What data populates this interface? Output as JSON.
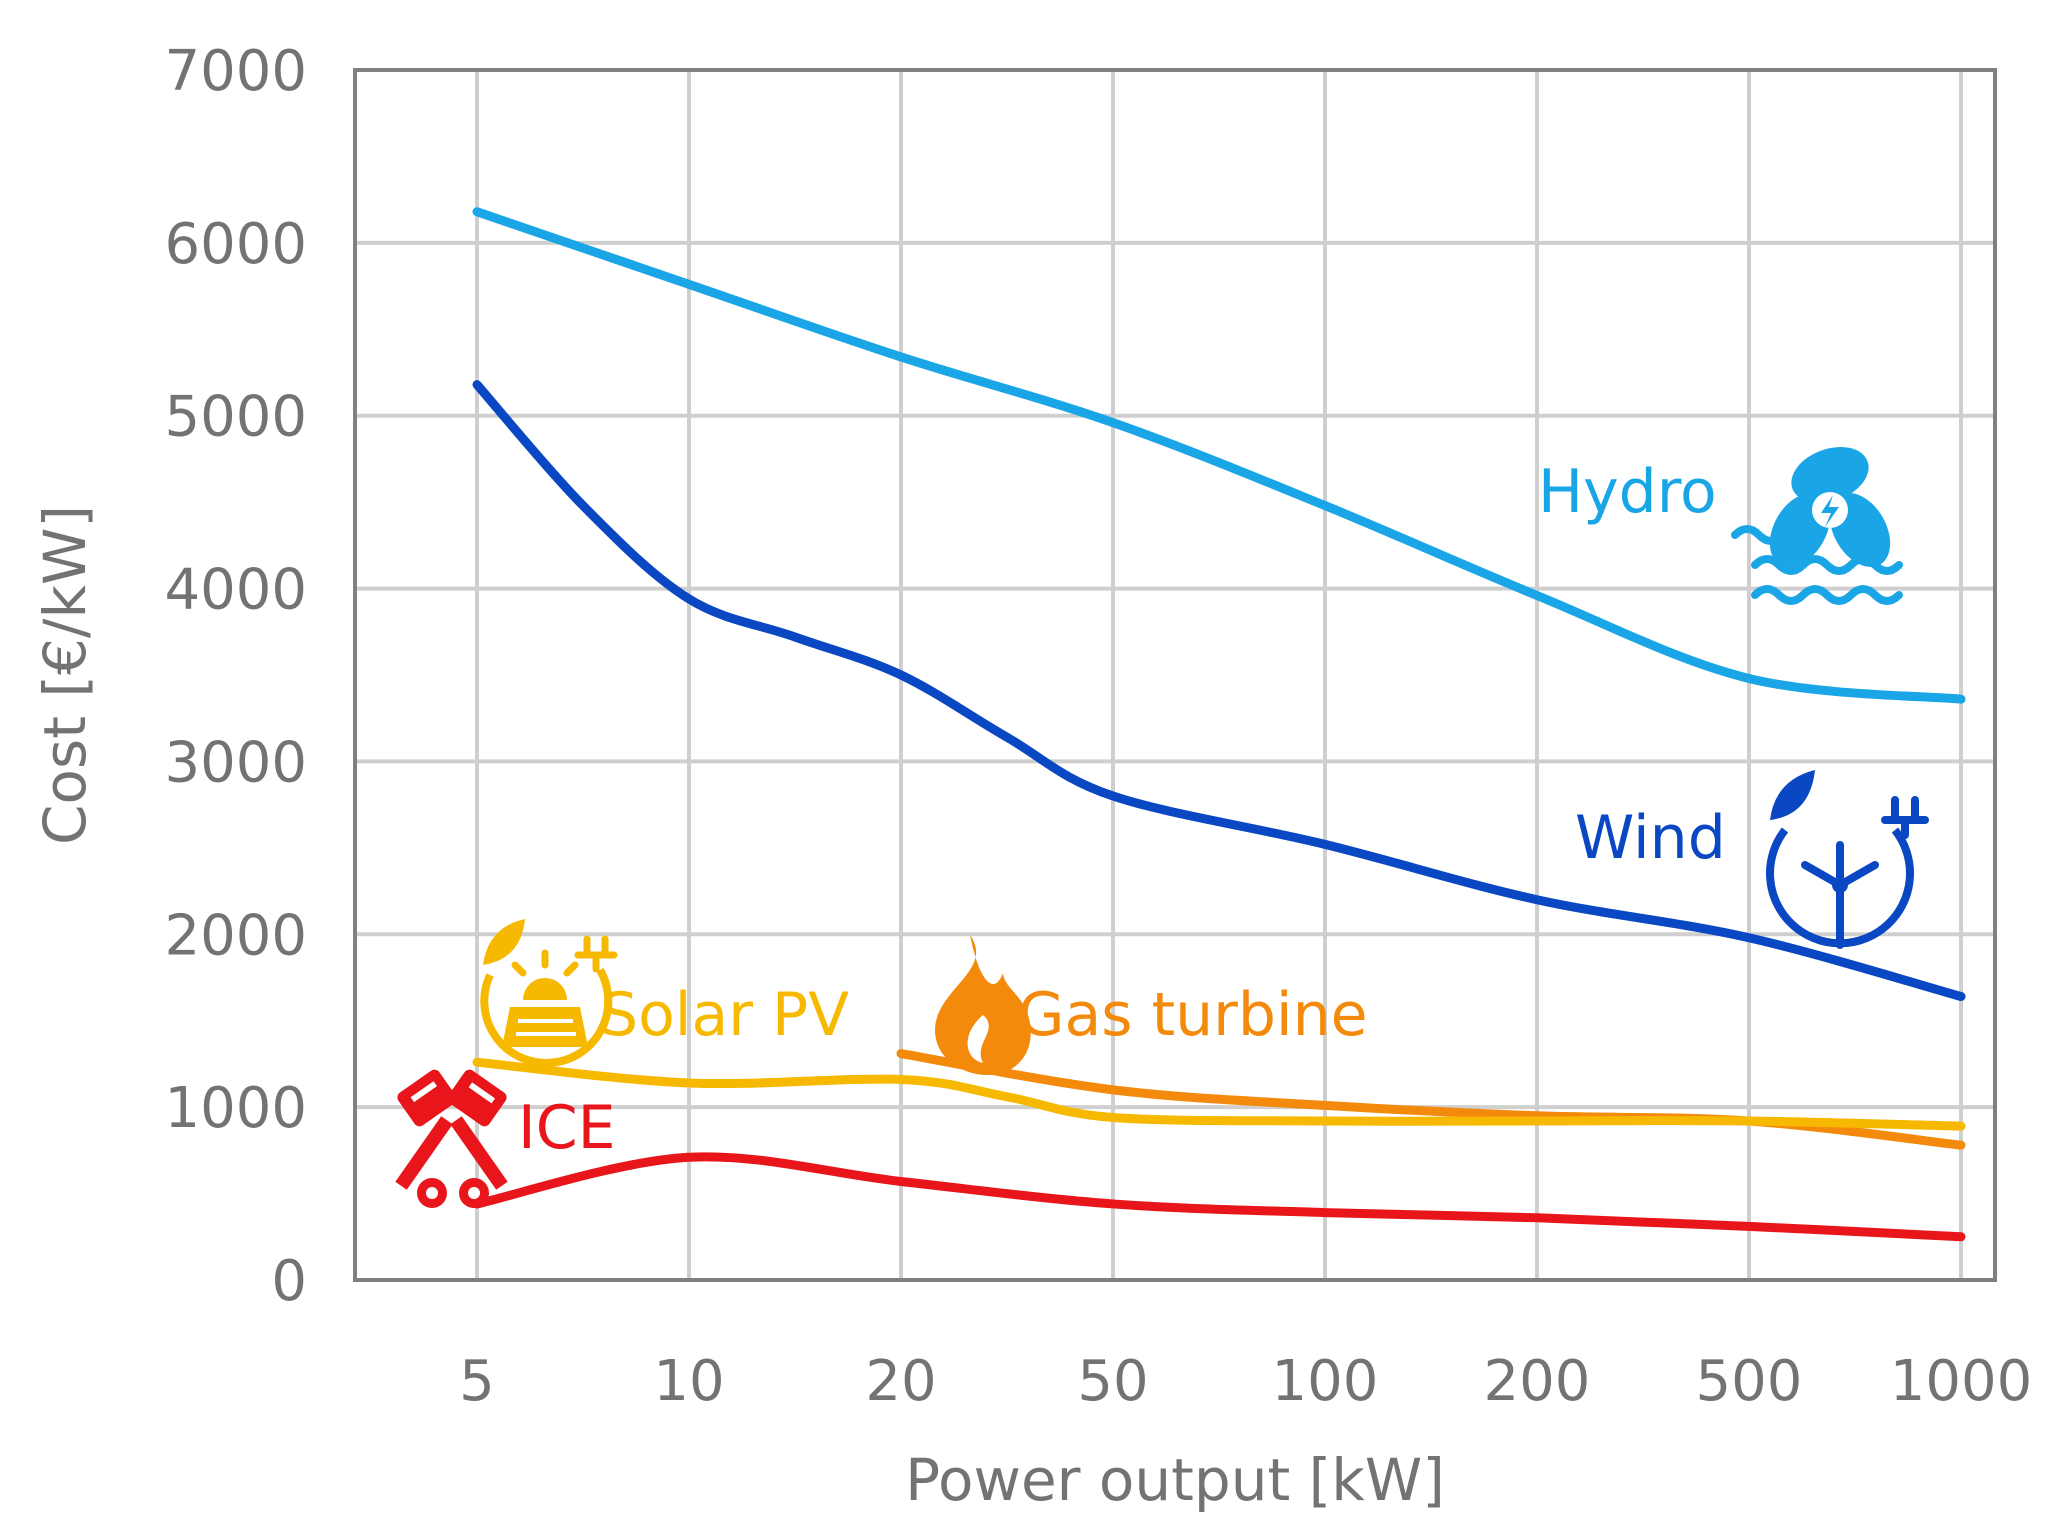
{
  "chart_data": {
    "type": "line",
    "title": "",
    "xlabel": "Power output [kW]",
    "ylabel": "Cost [€/kW]",
    "x_scale": "categorical-log",
    "categories": [
      "5",
      "10",
      "20",
      "50",
      "100",
      "200",
      "500",
      "1000"
    ],
    "ylim": [
      0,
      7000
    ],
    "yticks": [
      0,
      1000,
      2000,
      3000,
      4000,
      5000,
      6000,
      7000
    ],
    "grid": true,
    "series": [
      {
        "name": "Hydro",
        "color": "#1aa6e6",
        "icon": "hydro-turbine-icon",
        "points": [
          [
            0,
            6180
          ],
          [
            1,
            5760
          ],
          [
            2,
            5340
          ],
          [
            3,
            4960
          ],
          [
            4,
            4480
          ],
          [
            5,
            3960
          ],
          [
            6,
            3480
          ],
          [
            7,
            3360
          ]
        ]
      },
      {
        "name": "Wind",
        "color": "#0a47c2",
        "icon": "wind-turbine-icon",
        "points": [
          [
            0,
            5180
          ],
          [
            0.5,
            4480
          ],
          [
            1,
            3940
          ],
          [
            1.5,
            3720
          ],
          [
            2,
            3500
          ],
          [
            2.5,
            3140
          ],
          [
            3,
            2800
          ],
          [
            4,
            2520
          ],
          [
            5,
            2200
          ],
          [
            6,
            1980
          ],
          [
            7,
            1640
          ]
        ]
      },
      {
        "name": "Solar PV",
        "color": "#f7b900",
        "icon": "solar-panel-icon",
        "points": [
          [
            0,
            1260
          ],
          [
            1,
            1140
          ],
          [
            2,
            1160
          ],
          [
            2.5,
            1060
          ],
          [
            3,
            940
          ],
          [
            4,
            920
          ],
          [
            5,
            920
          ],
          [
            6,
            920
          ],
          [
            7,
            890
          ]
        ]
      },
      {
        "name": "Gas turbine",
        "color": "#f48a0c",
        "icon": "flame-icon",
        "points": [
          [
            2,
            1310
          ],
          [
            3,
            1100
          ],
          [
            4,
            1010
          ],
          [
            5,
            950
          ],
          [
            6,
            920
          ],
          [
            7,
            780
          ]
        ]
      },
      {
        "name": "ICE",
        "color": "#e8161b",
        "icon": "engine-pistons-icon",
        "points": [
          [
            0,
            440
          ],
          [
            1,
            710
          ],
          [
            2,
            570
          ],
          [
            3,
            440
          ],
          [
            4,
            390
          ],
          [
            5,
            360
          ],
          [
            6,
            310
          ],
          [
            7,
            250
          ]
        ]
      }
    ]
  }
}
